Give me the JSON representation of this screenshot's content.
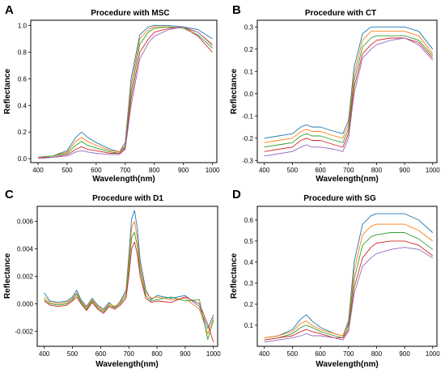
{
  "colors": [
    "#1f77b4",
    "#ff7f0e",
    "#2ca02c",
    "#d62728",
    "#9467bd",
    "#8c564b",
    "#e377c2",
    "#7f7f7f",
    "#bcbd22",
    "#17becf"
  ],
  "chart_data": [
    {
      "type": "line",
      "letter": "A",
      "title": "Procedure with MSC",
      "xlabel": "Wavelength(nm)",
      "ylabel": "Reflectance",
      "xlim": [
        375,
        1015
      ],
      "ylim": [
        -0.03,
        1.04
      ],
      "xticks": [
        400,
        500,
        600,
        700,
        800,
        900,
        1000
      ],
      "yticks": [
        0.0,
        0.2,
        0.4,
        0.6,
        0.8,
        1.0
      ],
      "ytick_labels": [
        "0.0",
        "0.2",
        "0.4",
        "0.6",
        "0.8",
        "1.0"
      ],
      "x": [
        400,
        450,
        500,
        530,
        550,
        570,
        600,
        650,
        680,
        700,
        720,
        750,
        780,
        800,
        850,
        900,
        950,
        1000
      ],
      "series": [
        {
          "values": [
            0.01,
            0.02,
            0.06,
            0.16,
            0.2,
            0.16,
            0.12,
            0.07,
            0.05,
            0.12,
            0.6,
            0.93,
            0.99,
            1.0,
            1.0,
            0.99,
            0.97,
            0.9
          ]
        },
        {
          "values": [
            0.01,
            0.02,
            0.05,
            0.13,
            0.16,
            0.13,
            0.1,
            0.06,
            0.05,
            0.1,
            0.55,
            0.9,
            0.97,
            0.99,
            0.99,
            0.98,
            0.95,
            0.86
          ]
        },
        {
          "values": [
            0.01,
            0.02,
            0.04,
            0.1,
            0.13,
            0.1,
            0.08,
            0.05,
            0.04,
            0.09,
            0.5,
            0.86,
            0.95,
            0.98,
            0.99,
            0.98,
            0.93,
            0.83
          ]
        },
        {
          "values": [
            0.01,
            0.01,
            0.03,
            0.07,
            0.09,
            0.07,
            0.06,
            0.04,
            0.04,
            0.08,
            0.45,
            0.8,
            0.9,
            0.95,
            0.98,
            0.99,
            0.92,
            0.8
          ]
        },
        {
          "values": [
            0.0,
            0.01,
            0.02,
            0.05,
            0.06,
            0.05,
            0.04,
            0.03,
            0.03,
            0.07,
            0.4,
            0.75,
            0.87,
            0.92,
            0.97,
            0.99,
            0.95,
            0.85
          ]
        }
      ]
    },
    {
      "type": "line",
      "letter": "B",
      "title": "Procedure with CT",
      "xlabel": "Wavelength(nm)",
      "ylabel": "Reflectance",
      "xlim": [
        375,
        1015
      ],
      "ylim": [
        -0.31,
        0.33
      ],
      "xticks": [
        400,
        500,
        600,
        700,
        800,
        900,
        1000
      ],
      "yticks": [
        -0.3,
        -0.2,
        -0.1,
        0.0,
        0.1,
        0.2,
        0.3
      ],
      "ytick_labels": [
        "-0.3",
        "-0.2",
        "-0.1",
        "0.0",
        "0.1",
        "0.2",
        "0.3"
      ],
      "x": [
        400,
        450,
        500,
        530,
        550,
        570,
        600,
        650,
        680,
        700,
        720,
        750,
        780,
        800,
        850,
        900,
        950,
        1000
      ],
      "series": [
        {
          "values": [
            -0.2,
            -0.19,
            -0.18,
            -0.15,
            -0.14,
            -0.15,
            -0.15,
            -0.17,
            -0.18,
            -0.12,
            0.12,
            0.27,
            0.3,
            0.3,
            0.3,
            0.3,
            0.28,
            0.2
          ]
        },
        {
          "values": [
            -0.22,
            -0.21,
            -0.2,
            -0.17,
            -0.16,
            -0.17,
            -0.17,
            -0.19,
            -0.2,
            -0.14,
            0.09,
            0.24,
            0.28,
            0.28,
            0.28,
            0.28,
            0.26,
            0.18
          ]
        },
        {
          "values": [
            -0.24,
            -0.23,
            -0.22,
            -0.19,
            -0.18,
            -0.19,
            -0.19,
            -0.21,
            -0.22,
            -0.16,
            0.06,
            0.21,
            0.25,
            0.26,
            0.26,
            0.26,
            0.24,
            0.17
          ]
        },
        {
          "values": [
            -0.26,
            -0.25,
            -0.24,
            -0.21,
            -0.2,
            -0.21,
            -0.21,
            -0.23,
            -0.24,
            -0.18,
            0.03,
            0.18,
            0.22,
            0.24,
            0.25,
            0.25,
            0.23,
            0.16
          ]
        },
        {
          "values": [
            -0.28,
            -0.27,
            -0.26,
            -0.24,
            -0.23,
            -0.24,
            -0.24,
            -0.25,
            -0.26,
            -0.2,
            0.0,
            0.16,
            0.2,
            0.22,
            0.24,
            0.25,
            0.22,
            0.15
          ]
        }
      ]
    },
    {
      "type": "line",
      "letter": "C",
      "title": "Procedure with D1",
      "xlabel": "Wavelength(nm)",
      "ylabel": "Reflectance",
      "xlim": [
        375,
        1015
      ],
      "ylim": [
        -0.0031,
        0.0071
      ],
      "xticks": [
        400,
        500,
        600,
        700,
        800,
        900,
        1000
      ],
      "yticks": [
        -0.002,
        0.0,
        0.002,
        0.004,
        0.006
      ],
      "ytick_labels": [
        "-0.002",
        "0.000",
        "0.002",
        "0.004",
        "0.006"
      ],
      "x": [
        400,
        420,
        450,
        480,
        500,
        515,
        530,
        550,
        570,
        590,
        610,
        630,
        650,
        670,
        690,
        700,
        710,
        720,
        730,
        740,
        760,
        780,
        800,
        850,
        900,
        950,
        980,
        1000
      ],
      "series": [
        {
          "values": [
            0.0008,
            0.0002,
            0.0001,
            0.0002,
            0.0005,
            0.001,
            0.0003,
            -0.0002,
            0.0004,
            -0.0001,
            -0.0004,
            0.0001,
            -0.0003,
            0.0002,
            0.001,
            0.0035,
            0.0062,
            0.0068,
            0.0055,
            0.0032,
            0.001,
            0.0003,
            0.0006,
            0.0004,
            0.0006,
            -0.0002,
            -0.0018,
            -0.0008
          ]
        },
        {
          "values": [
            0.0005,
            0.0001,
            0.0,
            0.0001,
            0.0004,
            0.0008,
            0.0002,
            -0.0003,
            0.0003,
            -0.0002,
            -0.0005,
            0.0,
            -0.0002,
            0.0001,
            0.0008,
            0.003,
            0.0055,
            0.006,
            0.0048,
            0.0028,
            0.0008,
            0.0004,
            0.0005,
            0.0003,
            0.0004,
            -0.0004,
            -0.0022,
            -0.001
          ]
        },
        {
          "values": [
            0.0003,
            0.0,
            -0.0001,
            0.0,
            0.0003,
            0.0007,
            0.0001,
            -0.0004,
            0.0002,
            -0.0003,
            -0.0006,
            -0.0001,
            -0.0003,
            0.0,
            0.0006,
            0.0025,
            0.0048,
            0.0052,
            0.0042,
            0.0024,
            0.0006,
            0.0002,
            0.0003,
            0.0005,
            0.0002,
            0.0003,
            -0.0026,
            -0.0012
          ]
        },
        {
          "values": [
            0.0002,
            -0.0001,
            -0.0002,
            -0.0001,
            0.0002,
            0.0005,
            0.0,
            -0.0005,
            0.0001,
            -0.0004,
            -0.0007,
            -0.0002,
            -0.0004,
            -0.0001,
            0.0004,
            0.002,
            0.004,
            0.0045,
            0.0036,
            0.002,
            0.0004,
            0.0001,
            0.0002,
            0.0001,
            0.0005,
            0.0,
            -0.0015,
            -0.0028
          ]
        }
      ]
    },
    {
      "type": "line",
      "letter": "D",
      "title": "Procedure with SG",
      "xlabel": "Wavelength(nm)",
      "ylabel": "Reflectance",
      "xlim": [
        375,
        1015
      ],
      "ylim": [
        0.0,
        0.665
      ],
      "xticks": [
        400,
        500,
        600,
        700,
        800,
        900,
        1000
      ],
      "yticks": [
        0.1,
        0.2,
        0.3,
        0.4,
        0.5,
        0.6
      ],
      "ytick_labels": [
        "0.1",
        "0.2",
        "0.3",
        "0.4",
        "0.5",
        "0.6"
      ],
      "x": [
        400,
        450,
        500,
        530,
        550,
        570,
        600,
        650,
        680,
        700,
        720,
        750,
        780,
        800,
        850,
        900,
        950,
        1000
      ],
      "series": [
        {
          "values": [
            0.04,
            0.05,
            0.08,
            0.13,
            0.15,
            0.12,
            0.09,
            0.06,
            0.05,
            0.12,
            0.4,
            0.58,
            0.62,
            0.63,
            0.63,
            0.63,
            0.6,
            0.54
          ]
        },
        {
          "values": [
            0.04,
            0.05,
            0.07,
            0.11,
            0.12,
            0.1,
            0.08,
            0.06,
            0.05,
            0.11,
            0.36,
            0.53,
            0.57,
            0.58,
            0.58,
            0.58,
            0.55,
            0.5
          ]
        },
        {
          "values": [
            0.03,
            0.04,
            0.06,
            0.09,
            0.1,
            0.09,
            0.07,
            0.05,
            0.04,
            0.1,
            0.32,
            0.48,
            0.52,
            0.53,
            0.54,
            0.54,
            0.51,
            0.46
          ]
        },
        {
          "values": [
            0.03,
            0.04,
            0.05,
            0.07,
            0.08,
            0.07,
            0.06,
            0.04,
            0.04,
            0.08,
            0.28,
            0.42,
            0.47,
            0.49,
            0.5,
            0.5,
            0.48,
            0.43
          ]
        },
        {
          "values": [
            0.02,
            0.03,
            0.04,
            0.05,
            0.06,
            0.05,
            0.05,
            0.04,
            0.03,
            0.07,
            0.25,
            0.38,
            0.42,
            0.44,
            0.46,
            0.47,
            0.46,
            0.42
          ]
        }
      ]
    }
  ]
}
